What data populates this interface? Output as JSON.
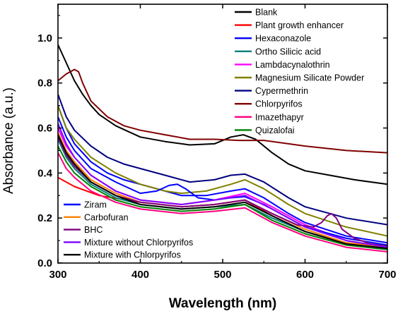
{
  "chart_data": {
    "type": "line",
    "xlabel": "Wavelength (nm)",
    "ylabel": "Absorbance (a.u.)",
    "xlim": [
      300,
      700
    ],
    "ylim": [
      0.0,
      1.15
    ],
    "xticks": [
      300,
      400,
      500,
      600,
      700
    ],
    "yticks": [
      0.0,
      0.2,
      0.4,
      0.6,
      0.8,
      1.0
    ],
    "xtick_labels": [
      "300",
      "400",
      "500",
      "600",
      "700"
    ],
    "ytick_labels": [
      "0.0",
      "0.2",
      "0.4",
      "0.6",
      "0.8",
      "1.0"
    ],
    "grid": false,
    "legend_placement": [
      "top-right",
      "bottom-left"
    ],
    "series": [
      {
        "name": "Blank",
        "color": "#000000",
        "legend": 0,
        "points": [
          [
            300,
            0.97
          ],
          [
            310,
            0.89
          ],
          [
            320,
            0.81
          ],
          [
            330,
            0.75
          ],
          [
            340,
            0.7
          ],
          [
            350,
            0.66
          ],
          [
            370,
            0.61
          ],
          [
            400,
            0.56
          ],
          [
            430,
            0.54
          ],
          [
            460,
            0.525
          ],
          [
            490,
            0.53
          ],
          [
            510,
            0.56
          ],
          [
            525,
            0.57
          ],
          [
            540,
            0.55
          ],
          [
            560,
            0.49
          ],
          [
            580,
            0.44
          ],
          [
            600,
            0.41
          ],
          [
            630,
            0.39
          ],
          [
            660,
            0.37
          ],
          [
            700,
            0.35
          ]
        ]
      },
      {
        "name": "Plant growth enhancer",
        "color": "#ff0000",
        "legend": 0,
        "points": [
          [
            300,
            0.38
          ],
          [
            320,
            0.34
          ],
          [
            350,
            0.3
          ],
          [
            400,
            0.27
          ],
          [
            450,
            0.25
          ],
          [
            490,
            0.26
          ],
          [
            527,
            0.28
          ],
          [
            560,
            0.21
          ],
          [
            600,
            0.14
          ],
          [
            650,
            0.09
          ],
          [
            700,
            0.07
          ]
        ]
      },
      {
        "name": "Hexaconazole",
        "color": "#0000ff",
        "legend": 0,
        "points": [
          [
            300,
            0.7
          ],
          [
            310,
            0.6
          ],
          [
            320,
            0.53
          ],
          [
            340,
            0.45
          ],
          [
            360,
            0.4
          ],
          [
            380,
            0.37
          ],
          [
            400,
            0.35
          ],
          [
            430,
            0.32
          ],
          [
            450,
            0.3
          ],
          [
            480,
            0.3
          ],
          [
            510,
            0.32
          ],
          [
            527,
            0.33
          ],
          [
            550,
            0.29
          ],
          [
            580,
            0.22
          ],
          [
            600,
            0.18
          ],
          [
            650,
            0.12
          ],
          [
            700,
            0.09
          ]
        ]
      },
      {
        "name": "Ortho Silicic acid",
        "color": "#008080",
        "legend": 0,
        "points": [
          [
            300,
            0.55
          ],
          [
            310,
            0.47
          ],
          [
            320,
            0.42
          ],
          [
            340,
            0.35
          ],
          [
            370,
            0.29
          ],
          [
            400,
            0.26
          ],
          [
            450,
            0.24
          ],
          [
            490,
            0.25
          ],
          [
            527,
            0.26
          ],
          [
            560,
            0.2
          ],
          [
            600,
            0.14
          ],
          [
            650,
            0.09
          ],
          [
            700,
            0.07
          ]
        ]
      },
      {
        "name": "Lambdacynalothrin",
        "color": "#ff00ff",
        "legend": 0,
        "points": [
          [
            300,
            0.6
          ],
          [
            310,
            0.52
          ],
          [
            320,
            0.47
          ],
          [
            340,
            0.39
          ],
          [
            370,
            0.32
          ],
          [
            400,
            0.28
          ],
          [
            450,
            0.26
          ],
          [
            490,
            0.28
          ],
          [
            527,
            0.31
          ],
          [
            560,
            0.25
          ],
          [
            600,
            0.17
          ],
          [
            650,
            0.1
          ],
          [
            700,
            0.07
          ]
        ]
      },
      {
        "name": "Magnesium Silicate Powder",
        "color": "#808000",
        "legend": 0,
        "points": [
          [
            300,
            0.7
          ],
          [
            310,
            0.6
          ],
          [
            320,
            0.55
          ],
          [
            340,
            0.47
          ],
          [
            370,
            0.4
          ],
          [
            400,
            0.35
          ],
          [
            430,
            0.32
          ],
          [
            450,
            0.31
          ],
          [
            480,
            0.32
          ],
          [
            510,
            0.35
          ],
          [
            527,
            0.37
          ],
          [
            550,
            0.33
          ],
          [
            580,
            0.26
          ],
          [
            600,
            0.22
          ],
          [
            650,
            0.16
          ],
          [
            700,
            0.12
          ]
        ]
      },
      {
        "name": "Cypermethrin",
        "color": "#000080",
        "legend": 0,
        "points": [
          [
            300,
            0.75
          ],
          [
            310,
            0.65
          ],
          [
            320,
            0.59
          ],
          [
            340,
            0.52
          ],
          [
            360,
            0.47
          ],
          [
            380,
            0.44
          ],
          [
            400,
            0.42
          ],
          [
            430,
            0.39
          ],
          [
            460,
            0.36
          ],
          [
            490,
            0.37
          ],
          [
            510,
            0.39
          ],
          [
            527,
            0.395
          ],
          [
            550,
            0.36
          ],
          [
            580,
            0.29
          ],
          [
            600,
            0.25
          ],
          [
            650,
            0.2
          ],
          [
            700,
            0.17
          ]
        ]
      },
      {
        "name": "Chlorpyrifos",
        "color": "#800000",
        "legend": 0,
        "points": [
          [
            300,
            0.81
          ],
          [
            310,
            0.84
          ],
          [
            315,
            0.85
          ],
          [
            320,
            0.86
          ],
          [
            325,
            0.85
          ],
          [
            330,
            0.8
          ],
          [
            340,
            0.72
          ],
          [
            360,
            0.65
          ],
          [
            380,
            0.61
          ],
          [
            400,
            0.59
          ],
          [
            430,
            0.57
          ],
          [
            460,
            0.55
          ],
          [
            490,
            0.55
          ],
          [
            520,
            0.545
          ],
          [
            550,
            0.545
          ],
          [
            580,
            0.53
          ],
          [
            600,
            0.52
          ],
          [
            650,
            0.5
          ],
          [
            700,
            0.49
          ]
        ]
      },
      {
        "name": "Imazethapyr",
        "color": "#ff0080",
        "legend": 0,
        "points": [
          [
            300,
            0.49
          ],
          [
            310,
            0.42
          ],
          [
            320,
            0.38
          ],
          [
            340,
            0.32
          ],
          [
            370,
            0.27
          ],
          [
            400,
            0.24
          ],
          [
            450,
            0.22
          ],
          [
            490,
            0.23
          ],
          [
            527,
            0.245
          ],
          [
            560,
            0.18
          ],
          [
            600,
            0.12
          ],
          [
            650,
            0.07
          ],
          [
            700,
            0.05
          ]
        ]
      },
      {
        "name": "Quizalofai",
        "color": "#008000",
        "legend": 0,
        "points": [
          [
            300,
            0.52
          ],
          [
            310,
            0.45
          ],
          [
            320,
            0.4
          ],
          [
            340,
            0.34
          ],
          [
            370,
            0.28
          ],
          [
            400,
            0.25
          ],
          [
            450,
            0.23
          ],
          [
            490,
            0.24
          ],
          [
            527,
            0.26
          ],
          [
            560,
            0.19
          ],
          [
            600,
            0.13
          ],
          [
            650,
            0.08
          ],
          [
            700,
            0.06
          ]
        ]
      },
      {
        "name": "Ziram",
        "color": "#0000ff",
        "legend": 1,
        "points": [
          [
            300,
            0.65
          ],
          [
            310,
            0.56
          ],
          [
            320,
            0.5
          ],
          [
            340,
            0.42
          ],
          [
            370,
            0.36
          ],
          [
            400,
            0.31
          ],
          [
            420,
            0.32
          ],
          [
            435,
            0.345
          ],
          [
            445,
            0.35
          ],
          [
            455,
            0.33
          ],
          [
            470,
            0.29
          ],
          [
            490,
            0.28
          ],
          [
            510,
            0.29
          ],
          [
            527,
            0.295
          ],
          [
            550,
            0.26
          ],
          [
            580,
            0.2
          ],
          [
            600,
            0.16
          ],
          [
            650,
            0.11
          ],
          [
            700,
            0.08
          ]
        ]
      },
      {
        "name": "Carbofuran",
        "color": "#ff8000",
        "legend": 1,
        "points": [
          [
            300,
            0.58
          ],
          [
            310,
            0.5
          ],
          [
            320,
            0.45
          ],
          [
            340,
            0.37
          ],
          [
            370,
            0.31
          ],
          [
            400,
            0.27
          ],
          [
            450,
            0.25
          ],
          [
            490,
            0.26
          ],
          [
            527,
            0.28
          ],
          [
            560,
            0.22
          ],
          [
            600,
            0.15
          ],
          [
            650,
            0.09
          ],
          [
            700,
            0.07
          ]
        ]
      },
      {
        "name": "BHC",
        "color": "#800080",
        "legend": 1,
        "points": [
          [
            300,
            0.56
          ],
          [
            310,
            0.48
          ],
          [
            320,
            0.43
          ],
          [
            340,
            0.36
          ],
          [
            370,
            0.3
          ],
          [
            400,
            0.27
          ],
          [
            450,
            0.25
          ],
          [
            490,
            0.26
          ],
          [
            527,
            0.28
          ],
          [
            560,
            0.22
          ],
          [
            590,
            0.17
          ],
          [
            610,
            0.16
          ],
          [
            620,
            0.18
          ],
          [
            627,
            0.21
          ],
          [
            632,
            0.22
          ],
          [
            638,
            0.2
          ],
          [
            645,
            0.15
          ],
          [
            660,
            0.11
          ],
          [
            680,
            0.085
          ],
          [
            700,
            0.075
          ]
        ]
      },
      {
        "name": "Mixture without Chlorpyrifos",
        "color": "#8000ff",
        "legend": 1,
        "points": [
          [
            300,
            0.62
          ],
          [
            310,
            0.53
          ],
          [
            320,
            0.47
          ],
          [
            340,
            0.39
          ],
          [
            370,
            0.32
          ],
          [
            400,
            0.28
          ],
          [
            450,
            0.26
          ],
          [
            490,
            0.28
          ],
          [
            527,
            0.3
          ],
          [
            560,
            0.24
          ],
          [
            600,
            0.16
          ],
          [
            650,
            0.1
          ],
          [
            700,
            0.07
          ]
        ]
      },
      {
        "name": "Mixture with Chlorpyrifos",
        "color": "#000000",
        "legend": 1,
        "points": [
          [
            300,
            0.57
          ],
          [
            310,
            0.49
          ],
          [
            320,
            0.44
          ],
          [
            340,
            0.36
          ],
          [
            370,
            0.3
          ],
          [
            400,
            0.26
          ],
          [
            450,
            0.24
          ],
          [
            490,
            0.25
          ],
          [
            527,
            0.27
          ],
          [
            560,
            0.21
          ],
          [
            600,
            0.14
          ],
          [
            650,
            0.085
          ],
          [
            700,
            0.065
          ]
        ]
      }
    ]
  }
}
